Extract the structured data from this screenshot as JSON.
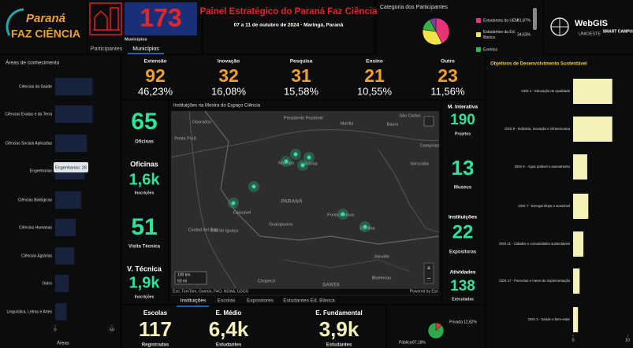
{
  "header": {
    "logo_top": "Paraná",
    "logo_bottom": "FAZ CIÊNCIA",
    "municipios_value": 173,
    "municipios_label": "Municípios",
    "tabs": [
      "Participantes",
      "Municípios"
    ],
    "title": "Painel Estratégico do Paraná Faz Ciência",
    "subtitle": "07 a 11 de outubro de 2024 - Maringá, Paraná",
    "partner_logo": "WebGIS",
    "partner_org": "UNIOESTE",
    "partner_unit": "SMART CAMPUS"
  },
  "participants_chart": {
    "type": "pie",
    "title": "Categoria dos Participantes",
    "categories": [
      "Estudantes da UEM",
      "Estudantes da Ed. Básica",
      "Eventos",
      null
    ],
    "values": [
      41.87,
      34.63,
      15,
      7.5
    ],
    "value_labels": [
      "41,87%",
      "34,63%",
      null,
      null
    ],
    "colors": [
      "#e6337a",
      "#f2e34a",
      "#36b24a",
      "#7b3fa0"
    ]
  },
  "areas_chart": {
    "type": "bar",
    "title": "Áreas de conhecimento",
    "categories": [
      "Ciências da Saúde",
      "Ciências Exatas e da Terra",
      "Ciências Sociais Aplicadas",
      "Engenharias",
      "Ciências Biológicas",
      "Ciências Humanas",
      "Ciências Agrárias",
      "Outro",
      "Linguística, Letras e Artes"
    ],
    "values": [
      33,
      33,
      28,
      26,
      23,
      18,
      17,
      12,
      10
    ],
    "xlim": [
      0,
      50
    ],
    "xticks": [
      0,
      50
    ],
    "axis_label": "Áreas",
    "tooltip": "Engenharias: 26",
    "color": "#17223d"
  },
  "stats": [
    {
      "label": "Extensão",
      "value": 92,
      "percent": "46,23%"
    },
    {
      "label": "Inovação",
      "value": 32,
      "percent": "16,08%"
    },
    {
      "label": "Pesquisa",
      "value": 31,
      "percent": "15,58%"
    },
    {
      "label": "Ensino",
      "value": 21,
      "percent": "10,55%"
    },
    {
      "label": "Outro",
      "value": 23,
      "percent": "11,56%"
    }
  ],
  "left_indicators": [
    {
      "value": 65,
      "label": "Oficinas"
    },
    {
      "title": "Oficinas",
      "value": "1,6k",
      "label": "Inscrições"
    },
    {
      "value": 51,
      "label": "Visita Técnica"
    },
    {
      "title": "V. Técnica",
      "value": "1,9k",
      "label": "Inscrições"
    }
  ],
  "map": {
    "title": "Instituições na Mostra do Espaço Ciência",
    "places": [
      "Dourados",
      "Ponta Porã",
      "Presidente Prudente",
      "Marília",
      "Bauru",
      "São Carlos",
      "Campinas",
      "Sorocaba",
      "Maringá",
      "Londrina",
      "Cascavel",
      "Ponta Grossa",
      "Curitiba",
      "PARANÁ",
      "Ciudad del Este",
      "Foz do Iguaçu",
      "Guarapuava",
      "Joinville",
      "Chapecó",
      "Blumenau",
      "SANTA"
    ],
    "scale": [
      "100 km",
      "50 mi"
    ],
    "attribution": "Esri, TomTom, Garmin, FAO, NOAA, USGS",
    "powered": "Powered by Esri",
    "tabs": [
      "Instituições",
      "Escolas",
      "Expositores",
      "Estudantes Ed. Básica"
    ]
  },
  "right_indicators": [
    {
      "title": "M. Interativa",
      "value": 190,
      "label": "Projetos"
    },
    {
      "value": 13,
      "label": "Museus"
    },
    {
      "title": "Instituições",
      "value": 22,
      "label": "Expositoras"
    },
    {
      "title": "Atividades",
      "value": 138,
      "label": "Executadas"
    }
  ],
  "bottom_indicators": [
    {
      "title": "Escolas",
      "value": 117,
      "label": "Registradas"
    },
    {
      "title": "E. Médio",
      "value": "6,4k",
      "label": "Estudantes"
    },
    {
      "title": "E. Fundamental",
      "value": "3,9k",
      "label": "Estudantes"
    }
  ],
  "schools_chart": {
    "type": "pie",
    "categories": [
      "Privada",
      "Pública"
    ],
    "values": [
      12.82,
      87.18
    ],
    "value_labels": [
      "12,82%",
      "87,18%"
    ],
    "colors": [
      "#e53935",
      "#2ea84a"
    ]
  },
  "ods_chart": {
    "type": "bar",
    "title": "Objetivos de Desenvolvimento Sustentável",
    "categories": [
      "ODS 4 - Educação de qualidade",
      "ODS 9 - Indústria, inovação e infraestrutura",
      "ODS 6 - Água potável e saneamento",
      "ODS 7 - Energia limpa e acessível",
      "ODS 11 - Cidades e comunidades sustentáveis",
      "ODS 17 - Parcerias e meios de implementação",
      "ODS 3 - Saúde e bem-estar"
    ],
    "values": [
      7.2,
      7.2,
      2.6,
      2.8,
      1.9,
      1.2,
      0.9
    ],
    "xlim": [
      0,
      10
    ],
    "xticks": [
      0,
      10
    ],
    "color": "#f6f1b8"
  }
}
